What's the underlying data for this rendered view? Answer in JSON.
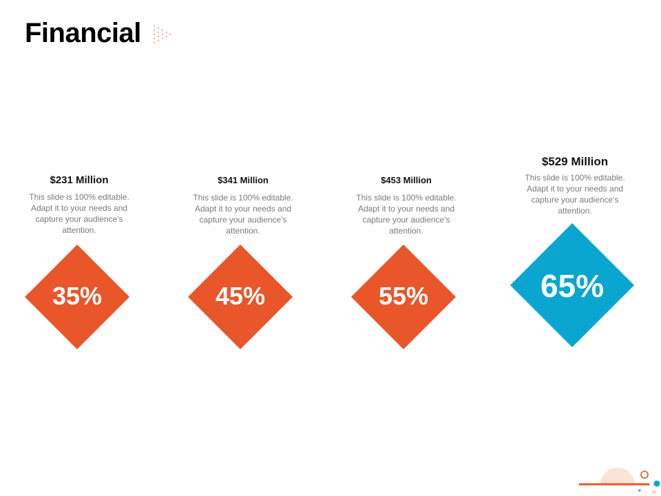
{
  "slide": {
    "title": "Financial"
  },
  "cards": [
    {
      "amount": "$231 Million",
      "description": "This slide is 100% editable. Adapt it to your needs and capture your audience's attention.",
      "percent": "35%",
      "color": "#E8562A"
    },
    {
      "amount": "$341 Million",
      "description": "This slide is 100% editable. Adapt it to your needs and capture your audience's attention.",
      "percent": "45%",
      "color": "#E8562A"
    },
    {
      "amount": "$453 Million",
      "description": "This slide is 100% editable. Adapt it to your needs and capture your audience's attention.",
      "percent": "55%",
      "color": "#E8562A"
    },
    {
      "amount": "$529 Million",
      "description": "This slide is 100% editable. Adapt it to your needs and capture your audience's attention.",
      "percent": "65%",
      "color": "#0AA6CF"
    }
  ],
  "theme": {
    "accent_orange": "#E8562A",
    "accent_blue": "#0AA6CF",
    "footer_peach": "#FBE3D8"
  }
}
